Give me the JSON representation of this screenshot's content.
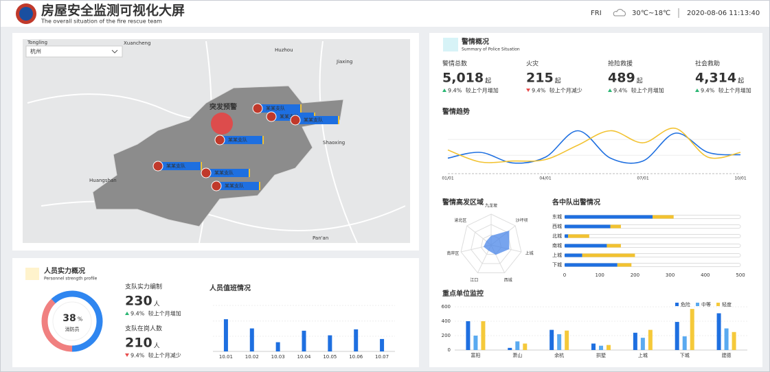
{
  "header": {
    "title": "房屋安全监测可视化大屏",
    "subtitle": "The overall situation of the fire rescue team",
    "day": "FRI",
    "weather": "30℃~18℃",
    "datetime": "2020-08-06 11:13:40"
  },
  "map": {
    "city": "杭州",
    "places": [
      "Tongling",
      "Xuancheng",
      "Huzhou",
      "Jiaxing",
      "Shaoxing",
      "Huangshan",
      "Pan'an"
    ],
    "alert": "突发预警",
    "units": [
      "某某支队",
      "某某支队",
      "某某支队",
      "某某支队",
      "某某支队",
      "某某支队",
      "某某支队"
    ]
  },
  "police": {
    "title": "警情概况",
    "subtitle": "Summary of Police Situation",
    "stats": [
      {
        "label": "警情总数",
        "value": "5,018",
        "unit": "起",
        "trend": "up",
        "change": "9.4%",
        "note": "较上个月增加"
      },
      {
        "label": "火灾",
        "value": "215",
        "unit": "起",
        "trend": "down",
        "change": "9.4%",
        "note": "较上个月减少"
      },
      {
        "label": "抢险救援",
        "value": "489",
        "unit": "起",
        "trend": "up",
        "change": "9.4%",
        "note": "较上个月增加"
      },
      {
        "label": "社会救助",
        "value": "4,314",
        "unit": "起",
        "trend": "up",
        "change": "9.4%",
        "note": "较上个月增加"
      }
    ],
    "trend": {
      "type": "line",
      "title": "警情趋势",
      "categories": [
        "01/01",
        null,
        null,
        "04/01",
        null,
        null,
        "07/01",
        null,
        null,
        "10/01"
      ],
      "ylim": [
        0,
        100
      ],
      "series": [
        {
          "color": "#1e6fe0",
          "values": [
            28,
            40,
            18,
            30,
            85,
            28,
            22,
            80,
            40,
            35
          ]
        },
        {
          "color": "#f2c230",
          "values": [
            45,
            20,
            22,
            25,
            55,
            85,
            60,
            90,
            30,
            40
          ]
        }
      ]
    },
    "radar": {
      "type": "radar",
      "title": "警情高发区域",
      "categories": [
        "九龙坡",
        "沙坪坝",
        "上城",
        "西城",
        "江口",
        "南岸区",
        "渝北区"
      ],
      "ylim": [
        0,
        100
      ],
      "color": "#4a86e8",
      "values": [
        30,
        75,
        60,
        35,
        20,
        25,
        20
      ]
    },
    "squads": {
      "type": "hbar",
      "title": "各中队出警情况",
      "categories": [
        "东城",
        "西城",
        "北城",
        "南城",
        "上城",
        "下城"
      ],
      "xlim": [
        0,
        500
      ],
      "xticks": [
        0,
        100,
        200,
        300,
        400,
        500
      ],
      "series": [
        {
          "color": "#1e6fe0",
          "values": [
            250,
            130,
            10,
            120,
            50,
            150
          ]
        },
        {
          "color": "#f2c230",
          "values": [
            60,
            30,
            60,
            40,
            150,
            40
          ]
        }
      ]
    },
    "units": {
      "type": "bar",
      "title": "重点单位监控",
      "categories": [
        "富阳",
        "萧山",
        "余杭",
        "拱墅",
        "上城",
        "下城",
        "建德"
      ],
      "ylim": [
        0,
        600
      ],
      "yticks": [
        0,
        200,
        400,
        600
      ],
      "series": [
        {
          "name": "危险",
          "color": "#1e6fe0",
          "values": [
            400,
            30,
            280,
            90,
            240,
            390,
            510
          ]
        },
        {
          "name": "中等",
          "color": "#5aaaf0",
          "values": [
            200,
            120,
            220,
            60,
            170,
            190,
            300
          ]
        },
        {
          "name": "轻度",
          "color": "#f5c93a",
          "values": [
            400,
            90,
            270,
            70,
            280,
            570,
            250
          ]
        }
      ]
    }
  },
  "personnel": {
    "title": "人员实力概况",
    "subtitle": "Personnel strength profile",
    "ratio": {
      "type": "donut",
      "value": 38,
      "unit": "%",
      "label": "消防员",
      "color": "#f08080",
      "rest_color": "#2f86f0"
    },
    "stats": [
      {
        "label": "支队实力编制",
        "value": "230",
        "unit": "人",
        "trend": "up",
        "change": "9.4%",
        "note": "较上个月增加"
      },
      {
        "label": "支队在岗人数",
        "value": "210",
        "unit": "人",
        "trend": "down",
        "change": "9.4%",
        "note": "较上个月减少"
      }
    ],
    "duty": {
      "type": "bar",
      "title": "人员值班情况",
      "categories": [
        "10.01",
        "10.02",
        "10.03",
        "10.04",
        "10.05",
        "10.06",
        "10.07"
      ],
      "ylim": [
        0,
        100
      ],
      "color": "#1e6fe0",
      "values": [
        70,
        50,
        20,
        45,
        35,
        48,
        27
      ]
    }
  }
}
